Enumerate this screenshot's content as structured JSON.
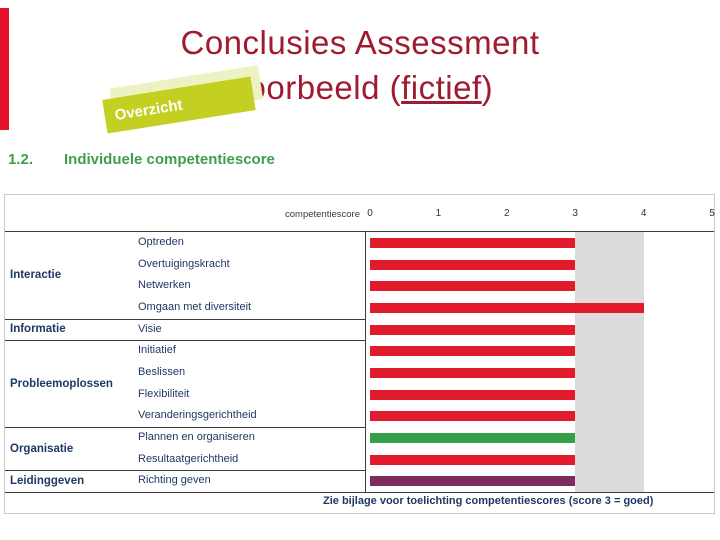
{
  "slide": {
    "title_line1": "Conclusies Assessment",
    "title_line2_prefix": "Voorbeeld (",
    "title_line2_underline": "fictief",
    "title_line2_suffix": ")",
    "overview_tab": "Overzicht",
    "section_number": "1.2.",
    "section_title": "Individuele competentiescore",
    "footnote": "Zie bijlage voor toelichting competentiescores (score 3 = goed)"
  },
  "colors": {
    "title_red": "#9e1b30",
    "stripe_red": "#e8112d",
    "section_green": "#3e9e50",
    "tab_green": "#c3d021",
    "tab_shadow": "#ecf2c2",
    "navy": "#1f3864",
    "bar_red": "#e11a2c",
    "bar_green": "#35a04a",
    "bar_purple": "#7d2b5c",
    "band_gray": "#dcdcdc"
  },
  "chart_data": {
    "type": "bar",
    "orientation": "horizontal",
    "header_label": "competentiescore",
    "axis_ticks": [
      "0",
      "1",
      "2",
      "3",
      "4",
      "5"
    ],
    "xlim": [
      0,
      5
    ],
    "highlight_band": [
      3,
      4
    ],
    "legend_note": "score 3 = goed",
    "groups": [
      {
        "category": "Interactie",
        "items": [
          {
            "label": "Optreden",
            "value": 3,
            "color": "red"
          },
          {
            "label": "Overtuigingskracht",
            "value": 3,
            "color": "red"
          },
          {
            "label": "Netwerken",
            "value": 3,
            "color": "red"
          },
          {
            "label": "Omgaan met diversiteit",
            "value": 4,
            "color": "red"
          }
        ]
      },
      {
        "category": "Informatie",
        "items": [
          {
            "label": "Visie",
            "value": 3,
            "color": "red"
          }
        ]
      },
      {
        "category": "Probleemoplossen",
        "items": [
          {
            "label": "Initiatief",
            "value": 3,
            "color": "red"
          },
          {
            "label": "Beslissen",
            "value": 3,
            "color": "red"
          },
          {
            "label": "Flexibiliteit",
            "value": 3,
            "color": "red"
          },
          {
            "label": "Veranderingsgerichtheid",
            "value": 3,
            "color": "red"
          }
        ]
      },
      {
        "category": "Organisatie",
        "items": [
          {
            "label": "Plannen en organiseren",
            "value": 3,
            "color": "green"
          },
          {
            "label": "Resultaatgerichtheid",
            "value": 3,
            "color": "red"
          }
        ]
      },
      {
        "category": "Leidinggeven",
        "items": [
          {
            "label": "Richting geven",
            "value": 3,
            "color": "purple"
          }
        ]
      }
    ]
  }
}
